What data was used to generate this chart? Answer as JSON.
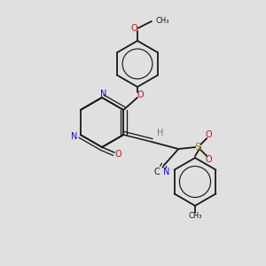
{
  "bg": "#e0e0e0",
  "bc": "#1a1a1a",
  "lw": 1.3,
  "dlw": 1.1,
  "dgap": 0.012,
  "colors": {
    "N": "#1010cc",
    "O": "#cc1010",
    "S": "#888800",
    "H": "#508080",
    "C": "#1a1a1a"
  },
  "fs": 7.0,
  "fs_small": 6.0
}
